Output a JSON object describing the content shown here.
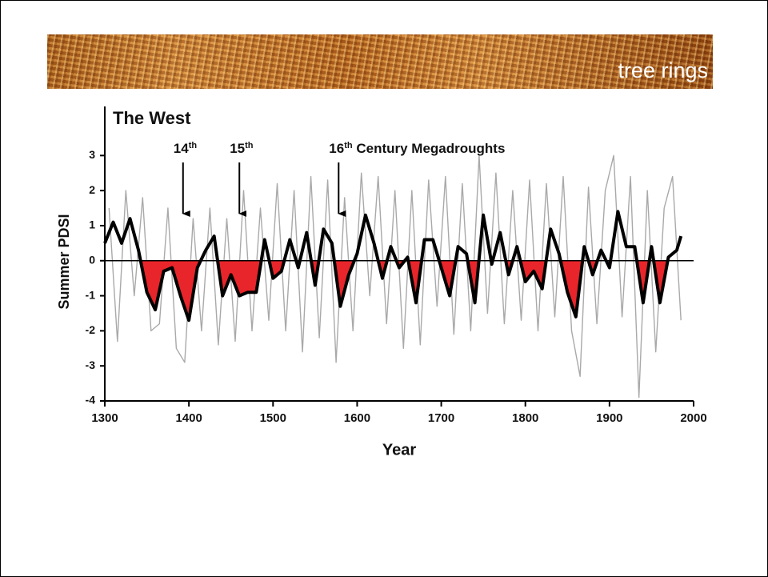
{
  "banner": {
    "title": "tree rings"
  },
  "chart_data": {
    "type": "line",
    "title": "The West",
    "x_label": "Year",
    "y_label": "Summer PDSI",
    "xlim": [
      1300,
      2000
    ],
    "xticks": [
      1300,
      1400,
      1500,
      1600,
      1700,
      1800,
      1900,
      2000
    ],
    "ylim": [
      -4,
      4.4
    ],
    "yticks": [
      -4,
      -3,
      -2,
      -1,
      0,
      1,
      2,
      3
    ],
    "annotations": [
      {
        "text": "14",
        "sup": "th",
        "year": 1393
      },
      {
        "text": "15",
        "sup": "th",
        "year": 1460
      },
      {
        "text": "16",
        "sup": "th",
        "rest": " Century Megadroughts",
        "year": 1578
      }
    ],
    "series": [
      {
        "color": "#a9a9a9",
        "x": [
          1305,
          1315,
          1325,
          1335,
          1345,
          1355,
          1365,
          1375,
          1385,
          1395,
          1405,
          1415,
          1425,
          1435,
          1445,
          1455,
          1465,
          1475,
          1485,
          1495,
          1505,
          1515,
          1525,
          1535,
          1545,
          1555,
          1565,
          1575,
          1585,
          1595,
          1605,
          1615,
          1625,
          1635,
          1645,
          1655,
          1665,
          1675,
          1685,
          1695,
          1705,
          1715,
          1725,
          1735,
          1745,
          1755,
          1765,
          1775,
          1785,
          1795,
          1805,
          1815,
          1825,
          1835,
          1845,
          1855,
          1865,
          1875,
          1885,
          1895,
          1905,
          1915,
          1925,
          1935,
          1945,
          1955,
          1965,
          1975,
          1985
        ],
        "values": [
          1.5,
          -2.3,
          2.0,
          -1.0,
          1.8,
          -2.0,
          -1.8,
          1.5,
          -2.5,
          -2.9,
          1.2,
          -2.0,
          1.5,
          -2.4,
          1.2,
          -2.3,
          2.0,
          -2.0,
          1.5,
          -1.7,
          2.2,
          -2.0,
          2.0,
          -2.6,
          2.4,
          -2.2,
          2.3,
          -2.9,
          1.8,
          -2.0,
          2.5,
          -1.0,
          2.4,
          -1.8,
          2.0,
          -2.5,
          2.0,
          -2.4,
          2.3,
          -1.3,
          2.4,
          -2.1,
          2.2,
          -2.0,
          3.0,
          -1.5,
          2.5,
          -1.8,
          2.0,
          -1.7,
          2.3,
          -2.0,
          2.2,
          -1.6,
          2.4,
          -2.0,
          -3.3,
          2.1,
          -1.8,
          2.0,
          3.0,
          -1.6,
          2.4,
          -3.9,
          2.0,
          -2.6,
          1.5,
          2.4,
          -1.7
        ]
      },
      {
        "color": "#000000",
        "fill_negative": "#e8252a",
        "x": [
          1300,
          1310,
          1320,
          1330,
          1340,
          1350,
          1360,
          1370,
          1380,
          1390,
          1400,
          1410,
          1420,
          1430,
          1440,
          1450,
          1460,
          1470,
          1480,
          1490,
          1500,
          1510,
          1520,
          1530,
          1540,
          1550,
          1560,
          1570,
          1580,
          1590,
          1600,
          1610,
          1620,
          1630,
          1640,
          1650,
          1660,
          1670,
          1680,
          1690,
          1700,
          1710,
          1720,
          1730,
          1740,
          1750,
          1760,
          1770,
          1780,
          1790,
          1800,
          1810,
          1820,
          1830,
          1840,
          1850,
          1860,
          1870,
          1880,
          1890,
          1900,
          1910,
          1920,
          1930,
          1940,
          1950,
          1960,
          1970,
          1980,
          1985
        ],
        "values": [
          0.5,
          1.1,
          0.5,
          1.2,
          0.3,
          -0.9,
          -1.4,
          -0.3,
          -0.2,
          -1.0,
          -1.7,
          -0.2,
          0.3,
          0.7,
          -1.0,
          -0.4,
          -1.0,
          -0.9,
          -0.9,
          0.6,
          -0.5,
          -0.3,
          0.6,
          -0.2,
          0.8,
          -0.7,
          0.9,
          0.5,
          -1.3,
          -0.4,
          0.2,
          1.3,
          0.5,
          -0.5,
          0.4,
          -0.2,
          0.1,
          -1.2,
          0.6,
          0.6,
          -0.2,
          -1.0,
          0.4,
          0.2,
          -1.2,
          1.3,
          -0.1,
          0.8,
          -0.4,
          0.4,
          -0.6,
          -0.3,
          -0.8,
          0.9,
          0.2,
          -0.9,
          -1.6,
          0.4,
          -0.4,
          0.3,
          -0.2,
          1.4,
          0.4,
          0.4,
          -1.2,
          0.4,
          -1.2,
          0.1,
          0.3,
          0.7
        ]
      }
    ]
  }
}
